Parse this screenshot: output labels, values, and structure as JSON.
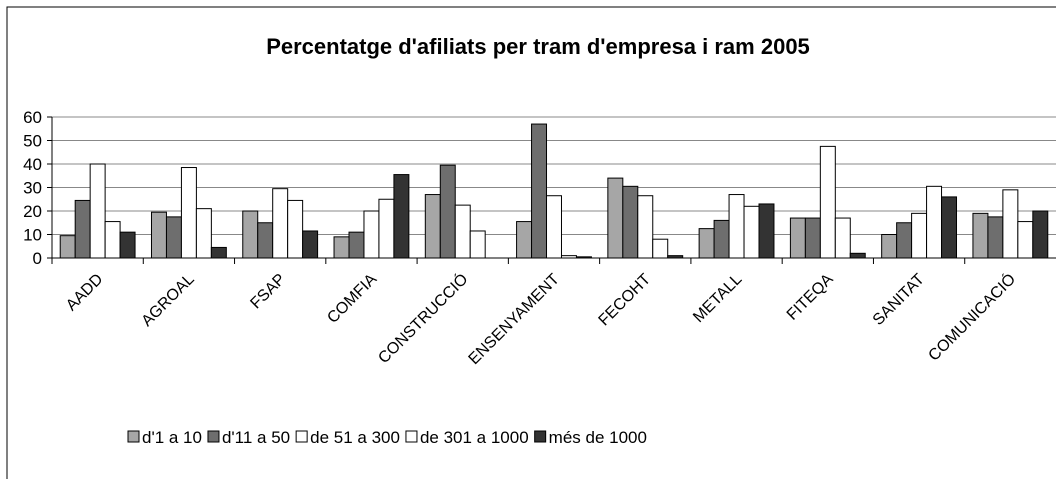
{
  "chart_data": {
    "type": "bar",
    "title": "Percentatge d'afiliats per tram d'empresa i ram 2005",
    "categories": [
      "AADD",
      "AGROAL",
      "FSAP",
      "COMFIA",
      "CONSTRUCCIÓ",
      "ENSENYAMENT",
      "FECOHT",
      "METALL",
      "FITEQA",
      "SANITAT",
      "COMUNICACIÓ"
    ],
    "series": [
      {
        "name": "d'1 a 10",
        "color": "#a6a6a6",
        "values": [
          9.5,
          19.5,
          20,
          9,
          27,
          15.5,
          34,
          12.5,
          17,
          10,
          19
        ]
      },
      {
        "name": "d'11 a 50",
        "color": "#6e6e6e",
        "values": [
          24.5,
          17.5,
          15,
          11,
          39.5,
          57,
          30.5,
          16,
          17,
          15,
          17.5
        ]
      },
      {
        "name": "de 51 a 300",
        "color": "#ffffff",
        "values": [
          40,
          38.5,
          29.5,
          20,
          22.5,
          26.5,
          26.5,
          27,
          47.5,
          19,
          29
        ]
      },
      {
        "name": "de 301 a 1000",
        "color": "#ffffff",
        "values": [
          15.5,
          21,
          24.5,
          25,
          11.5,
          1,
          8,
          22,
          17,
          30.5,
          15.5
        ]
      },
      {
        "name": "més de 1000",
        "color": "#333333",
        "values": [
          11,
          4.5,
          11.5,
          35.5,
          0,
          0.5,
          1,
          23,
          2,
          26,
          20
        ]
      }
    ],
    "ylim": [
      0,
      60
    ],
    "yticks": [
      0,
      10,
      20,
      30,
      40,
      50,
      60
    ],
    "grid": true
  }
}
